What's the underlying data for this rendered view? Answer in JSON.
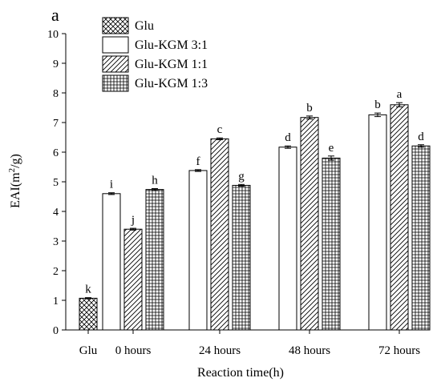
{
  "panel_label": "a",
  "chart_data": {
    "type": "bar",
    "xlabel": "Reaction time(h)",
    "ylabel_main": "EAI(m",
    "ylabel_sup": "2",
    "ylabel_tail": "/g)",
    "ylim": [
      0,
      10
    ],
    "yticks": [
      "0",
      "1",
      "2",
      "3",
      "4",
      "5",
      "6",
      "7",
      "8",
      "9",
      "10"
    ],
    "grid": false,
    "legend_position": "top-left",
    "categories": [
      "Glu",
      "0 hours",
      "24 hours",
      "48 hours",
      "72 hours"
    ],
    "series": [
      {
        "name": "Glu",
        "pattern": "crosshatch",
        "values": [
          1.07,
          null,
          null,
          null,
          null
        ],
        "errors": [
          0.02,
          null,
          null,
          null,
          null
        ],
        "letters": [
          "k",
          null,
          null,
          null,
          null
        ]
      },
      {
        "name": "Glu-KGM 3:1",
        "pattern": "plain",
        "values": [
          null,
          4.6,
          5.38,
          6.17,
          7.26
        ],
        "errors": [
          null,
          0.03,
          0.03,
          0.04,
          0.06
        ],
        "letters": [
          null,
          "i",
          "f",
          "d",
          "b"
        ]
      },
      {
        "name": "Glu-KGM 1:1",
        "pattern": "diagonal",
        "values": [
          null,
          3.4,
          6.45,
          7.17,
          7.6
        ],
        "errors": [
          null,
          0.03,
          0.03,
          0.05,
          0.07
        ],
        "letters": [
          null,
          "j",
          "c",
          "b",
          "a"
        ]
      },
      {
        "name": "Glu-KGM 1:3",
        "pattern": "grid",
        "values": [
          null,
          4.74,
          4.88,
          5.8,
          6.21
        ],
        "errors": [
          null,
          0.03,
          0.03,
          0.07,
          0.04
        ],
        "letters": [
          null,
          "h",
          "g",
          "e",
          "d"
        ]
      }
    ]
  }
}
